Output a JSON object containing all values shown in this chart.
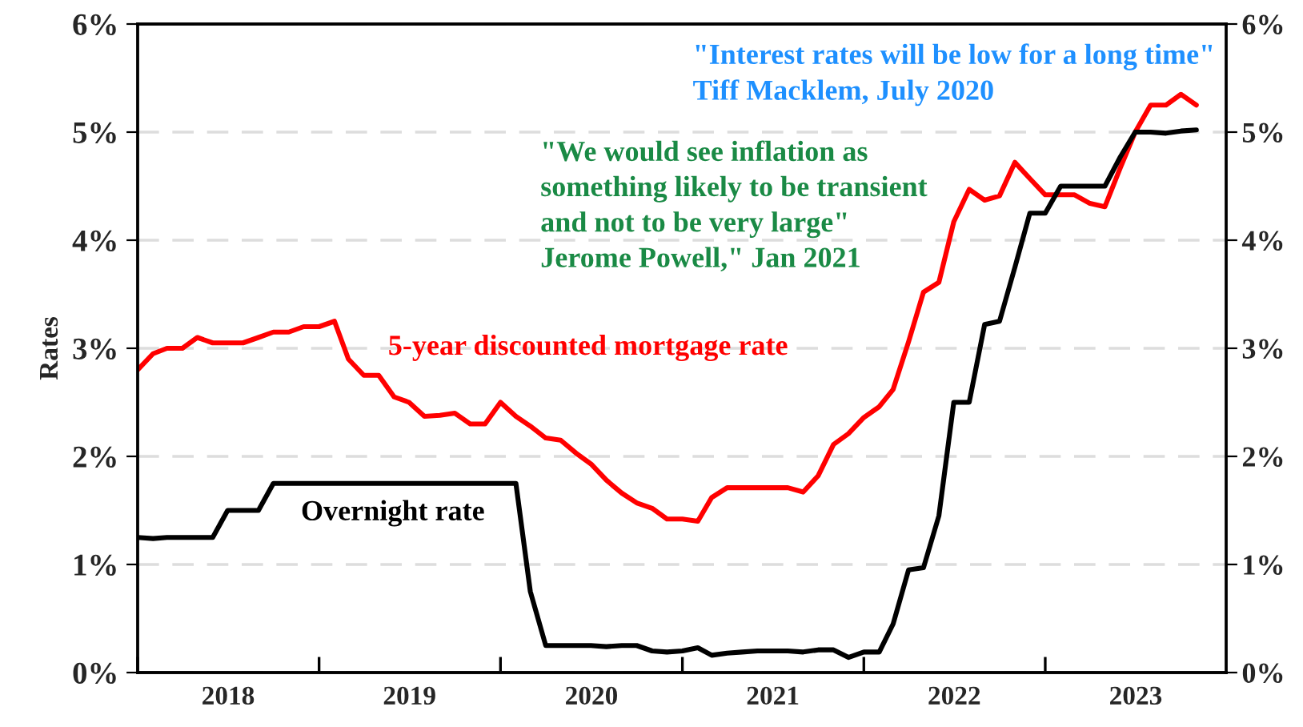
{
  "chart_data": {
    "type": "line",
    "ylabel": "Rates",
    "x": [
      "2018-01",
      "2018-02",
      "2018-03",
      "2018-04",
      "2018-05",
      "2018-06",
      "2018-07",
      "2018-08",
      "2018-09",
      "2018-10",
      "2018-11",
      "2018-12",
      "2019-01",
      "2019-02",
      "2019-03",
      "2019-04",
      "2019-05",
      "2019-06",
      "2019-07",
      "2019-08",
      "2019-09",
      "2019-10",
      "2019-11",
      "2019-12",
      "2020-01",
      "2020-02",
      "2020-03",
      "2020-04",
      "2020-05",
      "2020-06",
      "2020-07",
      "2020-08",
      "2020-09",
      "2020-10",
      "2020-11",
      "2020-12",
      "2021-01",
      "2021-02",
      "2021-03",
      "2021-04",
      "2021-05",
      "2021-06",
      "2021-07",
      "2021-08",
      "2021-09",
      "2021-10",
      "2021-11",
      "2021-12",
      "2022-01",
      "2022-02",
      "2022-03",
      "2022-04",
      "2022-05",
      "2022-06",
      "2022-07",
      "2022-08",
      "2022-09",
      "2022-10",
      "2022-11",
      "2022-12",
      "2023-01",
      "2023-02",
      "2023-03",
      "2023-04",
      "2023-05",
      "2023-06",
      "2023-07",
      "2023-08",
      "2023-09",
      "2023-10",
      "2023-11"
    ],
    "series": [
      {
        "name": "5-year discounted mortgage rate",
        "color": "#ff0000",
        "values": [
          2.8,
          2.95,
          3.0,
          3.0,
          3.1,
          3.05,
          3.05,
          3.05,
          3.1,
          3.15,
          3.15,
          3.2,
          3.2,
          3.25,
          2.9,
          2.75,
          2.75,
          2.55,
          2.5,
          2.37,
          2.38,
          2.4,
          2.3,
          2.3,
          2.5,
          2.37,
          2.28,
          2.17,
          2.15,
          2.03,
          1.93,
          1.78,
          1.66,
          1.57,
          1.52,
          1.42,
          1.42,
          1.4,
          1.62,
          1.71,
          1.71,
          1.71,
          1.71,
          1.71,
          1.67,
          1.82,
          2.11,
          2.21,
          2.36,
          2.46,
          2.62,
          3.06,
          3.52,
          3.61,
          4.17,
          4.47,
          4.37,
          4.41,
          4.72,
          4.57,
          4.42,
          4.42,
          4.42,
          4.34,
          4.31,
          4.67,
          5.0,
          5.25,
          5.25,
          5.35,
          5.25
        ]
      },
      {
        "name": "Overnight rate",
        "color": "#000000",
        "values": [
          1.25,
          1.24,
          1.25,
          1.25,
          1.25,
          1.25,
          1.5,
          1.5,
          1.5,
          1.75,
          1.75,
          1.75,
          1.75,
          1.75,
          1.75,
          1.75,
          1.75,
          1.75,
          1.75,
          1.75,
          1.75,
          1.75,
          1.75,
          1.75,
          1.75,
          1.75,
          0.75,
          0.25,
          0.25,
          0.25,
          0.25,
          0.24,
          0.25,
          0.25,
          0.2,
          0.19,
          0.2,
          0.23,
          0.16,
          0.18,
          0.19,
          0.2,
          0.2,
          0.2,
          0.19,
          0.21,
          0.21,
          0.14,
          0.19,
          0.19,
          0.45,
          0.95,
          0.97,
          1.45,
          2.5,
          2.5,
          3.22,
          3.25,
          3.75,
          4.25,
          4.25,
          4.5,
          4.5,
          4.5,
          4.5,
          4.77,
          5.0,
          5.0,
          4.99,
          5.01,
          5.02
        ]
      }
    ],
    "xlim": [
      "2018-01-01",
      "2023-12-31"
    ],
    "xticks": [
      {
        "value": "2018-01-01",
        "label": null
      },
      {
        "value": "2019-01-01",
        "label": null
      },
      {
        "value": "2020-01-01",
        "label": null
      },
      {
        "value": "2021-01-01",
        "label": null
      },
      {
        "value": "2022-01-01",
        "label": null
      },
      {
        "value": "2023-01-01",
        "label": null
      },
      {
        "value": "2018-07-02",
        "label": "2018"
      },
      {
        "value": "2019-07-02",
        "label": "2019"
      },
      {
        "value": "2020-07-02",
        "label": "2020"
      },
      {
        "value": "2021-07-02",
        "label": "2021"
      },
      {
        "value": "2022-07-02",
        "label": "2022"
      },
      {
        "value": "2023-07-02",
        "label": "2023"
      }
    ],
    "ylim": [
      0,
      6
    ],
    "yticks": [
      {
        "value": 0,
        "label": "0%"
      },
      {
        "value": 1,
        "label": "1%"
      },
      {
        "value": 2,
        "label": "2%"
      },
      {
        "value": 3,
        "label": "3%"
      },
      {
        "value": 4,
        "label": "4%"
      },
      {
        "value": 5,
        "label": "5%"
      },
      {
        "value": 6,
        "label": "6%"
      }
    ],
    "y2lim": [
      0,
      6
    ],
    "y2ticks": [
      {
        "value": 0,
        "label": "0%"
      },
      {
        "value": 1,
        "label": "1%"
      },
      {
        "value": 2,
        "label": "2%"
      },
      {
        "value": 3,
        "label": "3%"
      },
      {
        "value": 4,
        "label": "4%"
      },
      {
        "value": 5,
        "label": "5%"
      },
      {
        "value": 6,
        "label": "6%"
      }
    ],
    "grid": "y",
    "legend": false,
    "marker": "none",
    "line_style": "solid",
    "annotations": [
      "\"Interest rates will be low for a long time\"\nTiff Macklem, July 2020",
      "\"We would see inflation as\nsomething likely to be transient\nand not to be very large\"\nJerome Powell,\" Jan 2021"
    ]
  }
}
